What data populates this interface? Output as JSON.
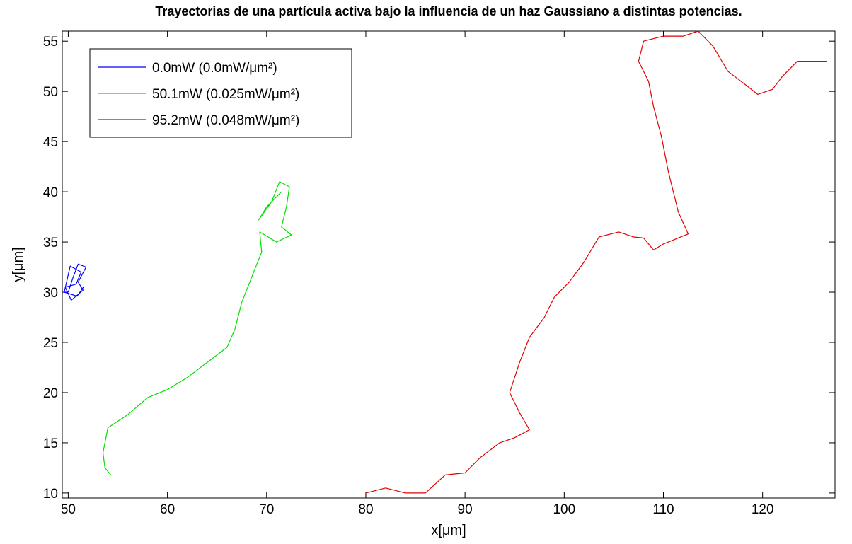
{
  "chart_data": {
    "type": "line",
    "title": "Trayectorias de una partícula activa bajo la influencia de un haz Gaussiano a distintas potencias.",
    "xlabel": "x[μm]",
    "ylabel": "y[μm]",
    "xlim": [
      49.4,
      127.3
    ],
    "ylim": [
      9.5,
      56
    ],
    "xticks": [
      50,
      60,
      70,
      80,
      90,
      100,
      110,
      120
    ],
    "yticks": [
      10,
      15,
      20,
      25,
      30,
      35,
      40,
      45,
      50,
      55
    ],
    "grid": false,
    "legend": "upper left",
    "series": [
      {
        "name": "0.0mW (0.0mW/μm²)",
        "color": "#0000ff",
        "x": [
          50,
          50.5,
          51,
          51.8,
          51,
          51.5,
          50.3,
          49.7,
          50.8,
          51.3,
          50.2,
          49.6,
          50.9,
          51.6
        ],
        "values": [
          30,
          31.5,
          32.8,
          32.5,
          31,
          30.2,
          29.2,
          30.5,
          30.8,
          32,
          32.6,
          30,
          29.6,
          30.6
        ]
      },
      {
        "name": "50.1mW (0.025mW/μm²)",
        "color": "#00e000",
        "x": [
          54.3,
          53.7,
          53.5,
          54,
          56,
          58,
          60,
          62,
          64,
          66,
          66.8,
          67.5,
          68.5,
          69.5,
          69.3,
          71,
          72.5,
          71.5,
          72,
          72.3,
          71.3,
          70.5,
          69.2,
          70,
          71.5
        ],
        "values": [
          11.8,
          12.5,
          14,
          16.5,
          17.8,
          19.5,
          20.3,
          21.5,
          23,
          24.5,
          26.3,
          29,
          31.5,
          34,
          36,
          35,
          35.7,
          36.5,
          38.5,
          40.5,
          41,
          39,
          37.2,
          38.5,
          40
        ]
      },
      {
        "name": "95.2mW (0.048mW/μm²)",
        "color": "#e00000",
        "x": [
          80,
          82,
          84,
          86,
          88,
          90,
          91.5,
          93.5,
          95,
          96.5,
          95.5,
          94.5,
          95.5,
          96.5,
          98,
          99,
          100.5,
          102,
          103.5,
          105.5,
          107,
          108,
          109,
          110,
          112.5,
          111.5,
          110.5,
          109.8,
          109,
          108.5,
          107.5,
          108,
          110,
          112,
          113.5,
          115,
          116.5,
          118.5,
          119.5,
          121,
          122,
          123.5,
          125,
          126.5
        ],
        "values": [
          10,
          10.5,
          10,
          10,
          11.8,
          12,
          13.5,
          15,
          15.5,
          16.3,
          18,
          20,
          23,
          25.5,
          27.5,
          29.5,
          31,
          33,
          35.5,
          36,
          35.5,
          35.4,
          34.2,
          34.8,
          35.8,
          38,
          42,
          45.5,
          48.5,
          51,
          53,
          55,
          55.5,
          55.5,
          56,
          54.5,
          52,
          50.5,
          49.7,
          50.2,
          51.5,
          53,
          53,
          53
        ]
      }
    ]
  }
}
